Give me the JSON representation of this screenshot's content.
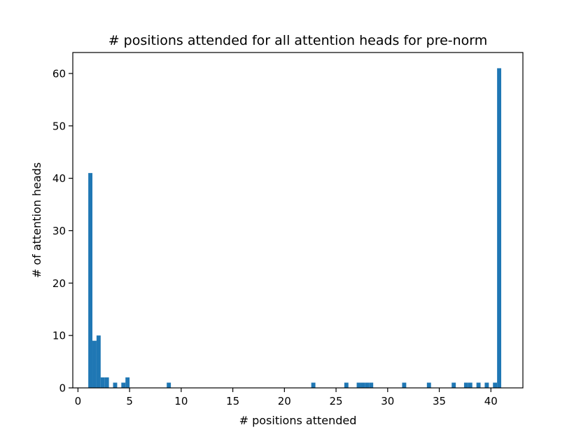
{
  "chart_data": {
    "type": "bar",
    "title": "# positions attended for all attention heads for pre-norm",
    "xlabel": "# positions attended",
    "ylabel": "# of attention heads",
    "xlim": [
      -0.5,
      43.1
    ],
    "ylim": [
      0,
      64
    ],
    "xticks": [
      0,
      5,
      10,
      15,
      20,
      25,
      30,
      35,
      40
    ],
    "yticks": [
      0,
      10,
      20,
      30,
      40,
      50,
      60
    ],
    "xtick_labels": [
      "0",
      "5",
      "10",
      "15",
      "20",
      "25",
      "30",
      "35",
      "40"
    ],
    "ytick_labels": [
      "0",
      "10",
      "20",
      "30",
      "40",
      "50",
      "60"
    ],
    "grid": false,
    "legend": "none",
    "bar_color": "#1f77b4",
    "bin_width": 0.4,
    "bins": [
      {
        "x": 1.0,
        "value": 41
      },
      {
        "x": 1.4,
        "value": 9
      },
      {
        "x": 1.8,
        "value": 10
      },
      {
        "x": 2.2,
        "value": 2
      },
      {
        "x": 2.6,
        "value": 2
      },
      {
        "x": 3.4,
        "value": 1
      },
      {
        "x": 4.2,
        "value": 1
      },
      {
        "x": 4.6,
        "value": 2
      },
      {
        "x": 8.6,
        "value": 1
      },
      {
        "x": 22.6,
        "value": 1
      },
      {
        "x": 25.8,
        "value": 1
      },
      {
        "x": 27.0,
        "value": 1
      },
      {
        "x": 27.4,
        "value": 1
      },
      {
        "x": 27.8,
        "value": 1
      },
      {
        "x": 28.2,
        "value": 1
      },
      {
        "x": 31.4,
        "value": 1
      },
      {
        "x": 33.8,
        "value": 1
      },
      {
        "x": 36.2,
        "value": 1
      },
      {
        "x": 37.4,
        "value": 1
      },
      {
        "x": 37.8,
        "value": 1
      },
      {
        "x": 38.6,
        "value": 1
      },
      {
        "x": 39.4,
        "value": 1
      },
      {
        "x": 40.2,
        "value": 1
      },
      {
        "x": 40.6,
        "value": 61
      }
    ]
  }
}
